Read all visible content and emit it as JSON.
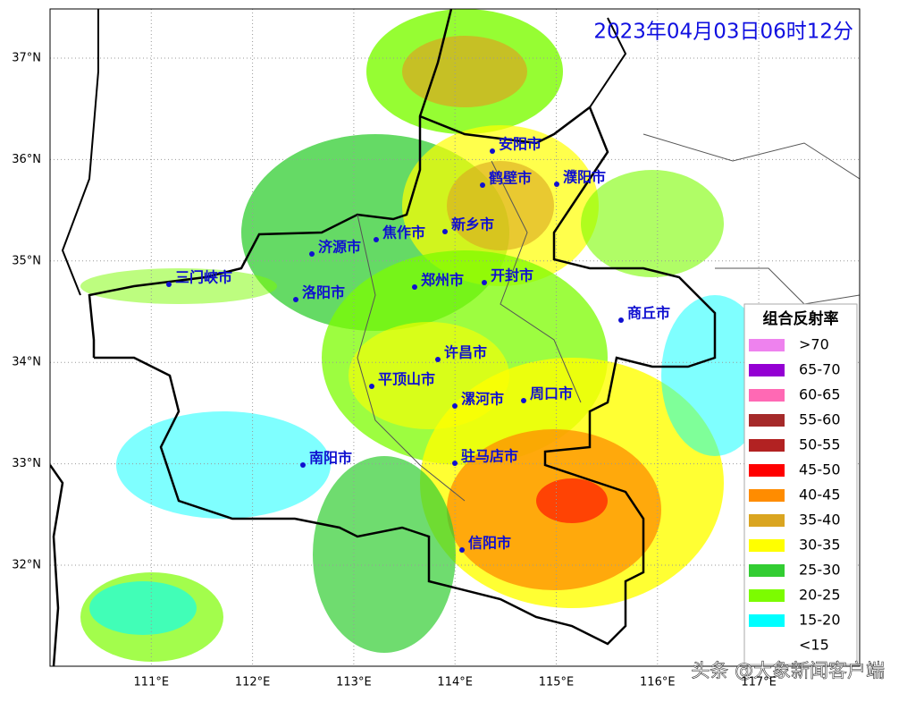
{
  "title": "2023年04月03日06时12分",
  "map": {
    "lon_ticks": [
      {
        "value": 111,
        "label": "111°E"
      },
      {
        "value": 112,
        "label": "112°E"
      },
      {
        "value": 113,
        "label": "113°E"
      },
      {
        "value": 114,
        "label": "114°E"
      },
      {
        "value": 115,
        "label": "115°E"
      },
      {
        "value": 116,
        "label": "116°E"
      },
      {
        "value": 117,
        "label": "117°E"
      }
    ],
    "lat_ticks": [
      {
        "value": 37,
        "label": "37°N"
      },
      {
        "value": 36,
        "label": "36°N"
      },
      {
        "value": 35,
        "label": "35°N"
      },
      {
        "value": 34,
        "label": "34°N"
      },
      {
        "value": 33,
        "label": "33°N"
      },
      {
        "value": 32,
        "label": "32°N"
      }
    ]
  },
  "cities": [
    "安阳市",
    "鹤壁市",
    "濮阳市",
    "新乡市",
    "焦作市",
    "济源市",
    "三门峡市",
    "洛阳市",
    "郑州市",
    "开封市",
    "商丘市",
    "许昌市",
    "平顶山市",
    "漯河市",
    "周口市",
    "南阳市",
    "驻马店市",
    "信阳市"
  ],
  "legend": {
    "title": "组合反射率",
    "items": [
      {
        "label": ">70",
        "color": "#ee82ee"
      },
      {
        "label": "65-70",
        "color": "#9400d3"
      },
      {
        "label": "60-65",
        "color": "#ff69b4"
      },
      {
        "label": "55-60",
        "color": "#a52a2a"
      },
      {
        "label": "50-55",
        "color": "#b22222"
      },
      {
        "label": "45-50",
        "color": "#ff0000"
      },
      {
        "label": "40-45",
        "color": "#ff8c00"
      },
      {
        "label": "35-40",
        "color": "#daa520"
      },
      {
        "label": "30-35",
        "color": "#ffff00"
      },
      {
        "label": "25-30",
        "color": "#32cd32"
      },
      {
        "label": "20-25",
        "color": "#7cfc00"
      },
      {
        "label": "15-20",
        "color": "#00ffff"
      },
      {
        "label": "<15",
        "color": "#ffffff"
      }
    ]
  },
  "watermark": "头条 @大象新闻客户端"
}
